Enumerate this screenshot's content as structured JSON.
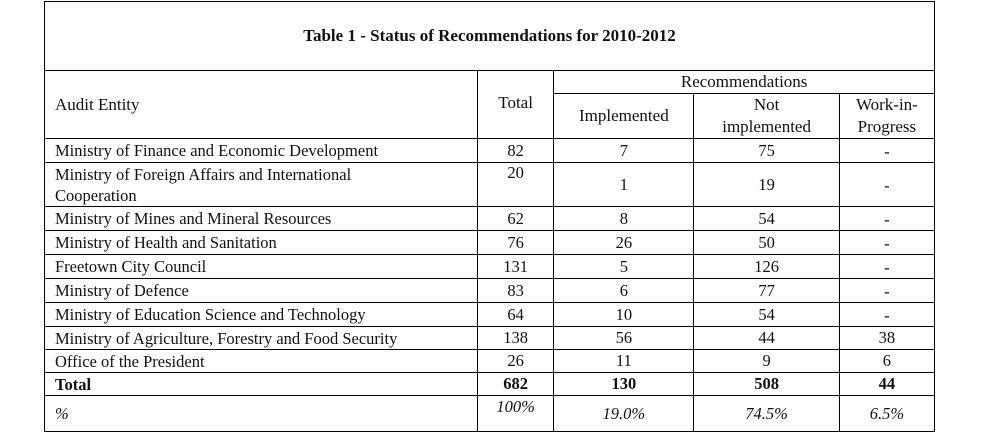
{
  "title": "Table 1 - Status of Recommendations for 2010-2012",
  "headers": {
    "entity": "Audit Entity",
    "total": "Total",
    "group": "Recommendations",
    "implemented": "Implemented",
    "not_implemented_1": "Not",
    "not_implemented_2": "implemented",
    "wip_1": "Work-in-",
    "wip_2": "Progress"
  },
  "rows": [
    {
      "entity": "Ministry of Finance and Economic Development",
      "total": "82",
      "implemented": "7",
      "not_implemented": "75",
      "wip": "-"
    },
    {
      "entity_1": "Ministry of Foreign Affairs and International",
      "entity_2": "Cooperation",
      "total": "20",
      "implemented": "1",
      "not_implemented": "19",
      "wip": "-"
    },
    {
      "entity": "Ministry of Mines and Mineral Resources",
      "total": "62",
      "implemented": "8",
      "not_implemented": "54",
      "wip": "-"
    },
    {
      "entity": "Ministry of Health and Sanitation",
      "total": "76",
      "implemented": "26",
      "not_implemented": "50",
      "wip": "-"
    },
    {
      "entity": "Freetown City Council",
      "total": "131",
      "implemented": "5",
      "not_implemented": "126",
      "wip": "-"
    },
    {
      "entity": "Ministry of Defence",
      "total": "83",
      "implemented": "6",
      "not_implemented": "77",
      "wip": "-"
    },
    {
      "entity": "Ministry of Education Science and Technology",
      "total": "64",
      "implemented": "10",
      "not_implemented": "54",
      "wip": "-"
    },
    {
      "entity": "Ministry of Agriculture, Forestry and Food Security",
      "total": "138",
      "implemented": "56",
      "not_implemented": "44",
      "wip": "38"
    },
    {
      "entity": "Office of the President",
      "total": "26",
      "implemented": "11",
      "not_implemented": "9",
      "wip": "6"
    }
  ],
  "total_row": {
    "label": "Total",
    "total": "682",
    "implemented": "130",
    "not_implemented": "508",
    "wip": "44"
  },
  "percent_row": {
    "label": "%",
    "total": "100%",
    "implemented": "19.0%",
    "not_implemented": "74.5%",
    "wip": "6.5%"
  }
}
